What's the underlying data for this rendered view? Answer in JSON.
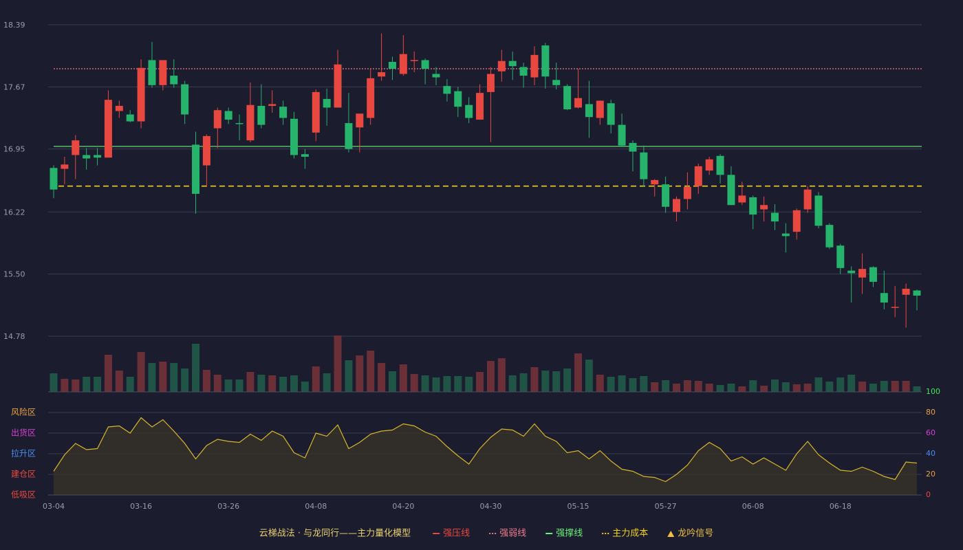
{
  "chart_data": {
    "type": "candlestick",
    "categories": [
      "03-04",
      null,
      null,
      null,
      null,
      null,
      null,
      null,
      "03-16",
      null,
      null,
      null,
      null,
      null,
      null,
      null,
      "03-26",
      null,
      null,
      null,
      null,
      null,
      null,
      null,
      "04-08",
      null,
      null,
      null,
      null,
      null,
      null,
      null,
      "04-20",
      null,
      null,
      null,
      null,
      null,
      null,
      null,
      "04-30",
      null,
      null,
      null,
      null,
      null,
      null,
      null,
      "05-15",
      null,
      null,
      null,
      null,
      null,
      null,
      null,
      "05-27",
      null,
      null,
      null,
      null,
      null,
      null,
      null,
      "06-08",
      null,
      null,
      null,
      null,
      null,
      null,
      null,
      "06-18",
      null,
      null,
      null,
      null,
      null,
      null,
      null
    ],
    "open": [
      16.73,
      16.72,
      16.88,
      16.88,
      16.88,
      16.85,
      17.39,
      17.35,
      17.27,
      17.98,
      17.69,
      17.8,
      17.7,
      17.0,
      16.76,
      17.19,
      17.39,
      17.25,
      17.05,
      17.45,
      17.45,
      17.44,
      17.3,
      16.89,
      17.14,
      17.53,
      17.43,
      17.25,
      17.2,
      17.31,
      17.79,
      17.96,
      17.82,
      17.97,
      17.98,
      17.82,
      17.68,
      17.62,
      17.46,
      17.29,
      17.61,
      17.85,
      17.97,
      17.9,
      17.78,
      18.15,
      17.75,
      17.68,
      17.43,
      17.47,
      17.31,
      17.48,
      17.23,
      17.02,
      16.91,
      16.54,
      16.54,
      16.22,
      16.37,
      16.52,
      16.7,
      16.87,
      16.65,
      16.33,
      16.39,
      16.25,
      16.21,
      15.97,
      15.99,
      16.25,
      16.41,
      16.07,
      15.83,
      15.54,
      15.46,
      15.58,
      15.28,
      15.11,
      15.26,
      15.31
    ],
    "close": [
      16.48,
      16.77,
      17.05,
      16.84,
      16.85,
      17.52,
      17.45,
      17.27,
      17.89,
      17.69,
      17.98,
      17.7,
      17.35,
      16.43,
      17.1,
      17.4,
      17.29,
      17.24,
      17.46,
      17.23,
      17.47,
      17.31,
      16.88,
      16.86,
      17.61,
      17.43,
      17.93,
      16.95,
      17.36,
      17.77,
      17.84,
      17.88,
      18.05,
      17.98,
      17.88,
      17.78,
      17.59,
      17.44,
      17.31,
      17.6,
      17.82,
      17.97,
      17.91,
      17.8,
      18.04,
      17.79,
      17.69,
      17.41,
      17.54,
      17.32,
      17.51,
      17.23,
      16.99,
      16.92,
      16.6,
      16.59,
      16.28,
      16.37,
      16.51,
      16.75,
      16.83,
      16.65,
      16.3,
      16.41,
      16.19,
      16.3,
      16.11,
      15.94,
      16.24,
      16.48,
      16.06,
      15.81,
      15.57,
      15.51,
      15.56,
      15.41,
      15.17,
      15.12,
      15.33,
      15.25
    ],
    "high": [
      16.76,
      16.86,
      17.11,
      16.96,
      16.96,
      17.63,
      17.51,
      17.4,
      17.99,
      18.19,
      17.98,
      17.99,
      17.74,
      17.15,
      17.12,
      17.43,
      17.43,
      17.35,
      17.72,
      17.7,
      17.63,
      17.51,
      17.38,
      16.95,
      17.64,
      17.65,
      18.1,
      17.6,
      17.36,
      17.88,
      18.29,
      18.02,
      18.27,
      18.08,
      18.0,
      17.9,
      17.76,
      17.67,
      17.55,
      17.7,
      17.9,
      18.1,
      18.08,
      17.95,
      18.14,
      18.18,
      17.95,
      17.7,
      17.88,
      17.74,
      17.51,
      17.52,
      17.36,
      17.05,
      16.99,
      16.6,
      16.63,
      16.4,
      16.68,
      16.78,
      16.86,
      16.89,
      16.75,
      16.57,
      16.41,
      16.4,
      16.31,
      16.09,
      16.26,
      16.52,
      16.45,
      16.09,
      15.85,
      15.59,
      15.74,
      15.59,
      15.54,
      15.36,
      15.39,
      15.32
    ],
    "low": [
      16.38,
      16.54,
      16.6,
      16.71,
      16.76,
      16.85,
      17.31,
      17.26,
      17.19,
      17.66,
      17.63,
      17.66,
      17.24,
      16.2,
      16.51,
      16.96,
      17.24,
      17.05,
      17.03,
      17.19,
      17.37,
      17.23,
      16.84,
      16.72,
      17.04,
      17.22,
      17.43,
      16.91,
      16.91,
      17.23,
      17.74,
      17.75,
      17.8,
      17.84,
      17.7,
      17.69,
      17.5,
      17.32,
      17.25,
      17.29,
      17.03,
      17.73,
      17.75,
      17.66,
      17.69,
      17.65,
      17.64,
      17.4,
      17.42,
      17.08,
      17.23,
      17.13,
      16.98,
      16.69,
      16.51,
      16.4,
      16.21,
      16.11,
      16.25,
      16.43,
      16.65,
      16.55,
      16.3,
      16.3,
      16.02,
      16.11,
      16.01,
      15.75,
      15.9,
      16.21,
      16.03,
      15.79,
      15.5,
      15.17,
      15.27,
      15.35,
      15.09,
      15.0,
      14.88,
      15.08
    ],
    "volume": [
      27,
      19,
      18,
      22,
      22,
      54,
      31,
      22,
      58,
      42,
      44,
      42,
      34,
      70,
      32,
      25,
      18,
      18,
      29,
      25,
      24,
      22,
      24,
      15,
      37,
      27,
      82,
      46,
      53,
      60,
      42,
      30,
      40,
      26,
      24,
      21,
      23,
      23,
      22,
      29,
      45,
      49,
      24,
      27,
      36,
      31,
      30,
      34,
      56,
      47,
      25,
      22,
      24,
      20,
      23,
      14,
      17,
      12,
      17,
      16,
      12,
      10,
      12,
      8,
      17,
      9,
      18,
      14,
      11,
      12,
      21,
      15,
      21,
      25,
      15,
      12,
      16,
      16,
      16,
      8
    ],
    "indicator": [
      23,
      39,
      50,
      44,
      45,
      66,
      67,
      60,
      75,
      66,
      73,
      62,
      50,
      35,
      48,
      54,
      52,
      51,
      59,
      53,
      62,
      57,
      41,
      36,
      60,
      57,
      68,
      45,
      51,
      59,
      62,
      63,
      69,
      67,
      61,
      57,
      47,
      38,
      30,
      45,
      56,
      64,
      63,
      57,
      69,
      57,
      52,
      41,
      43,
      35,
      43,
      33,
      25,
      23,
      18,
      17,
      13,
      20,
      29,
      43,
      51,
      45,
      33,
      37,
      30,
      36,
      30,
      24,
      40,
      52,
      39,
      31,
      24,
      23,
      27,
      23,
      18,
      15,
      32,
      31
    ],
    "up_color": "#e8483f",
    "down_color": "#26b36b",
    "indicator_color": "#d8b62c",
    "ylim": [
      14.78,
      18.39
    ],
    "yticks": [
      14.78,
      {
        "value": 15.5,
        "label": "15.50"
      },
      16.22,
      16.95,
      17.67,
      18.39
    ],
    "indicator_ylim": [
      0,
      100
    ],
    "indicator_yticks": [
      0,
      20,
      40,
      60,
      80,
      100
    ],
    "indicator_tick_colors": [
      "#e8483f",
      "#e8a13f",
      "#4a8cf0",
      "#d63fd6",
      "#e8a13f",
      "#3fe85a"
    ],
    "zones": [
      {
        "value": 80,
        "label": "风险区",
        "color": "#e8a13f"
      },
      {
        "value": 60,
        "label": "出货区",
        "color": "#d63fd6"
      },
      {
        "value": 40,
        "label": "拉升区",
        "color": "#4a8cf0"
      },
      {
        "value": 20,
        "label": "建仓区",
        "color": "#e8483f"
      },
      {
        "value": 0,
        "label": "低吸区",
        "color": "#e8483f"
      }
    ],
    "legend_title": "云梯战法 · 与龙同行——主力量化模型",
    "lines": [
      {
        "name": "强压线",
        "color": "#e8483f",
        "style": "solid"
      },
      {
        "name": "强弱线",
        "color": "#f07a8a",
        "style": "dotted",
        "value": 17.88
      },
      {
        "name": "强撑线",
        "color": "#6af07a",
        "style": "solid",
        "value": 16.98
      },
      {
        "name": "主力成本",
        "color": "#f0d020",
        "style": "dashed",
        "value": 16.52
      },
      {
        "name": "龙吟信号",
        "color": "#f0c040",
        "style": "triangle"
      }
    ]
  }
}
